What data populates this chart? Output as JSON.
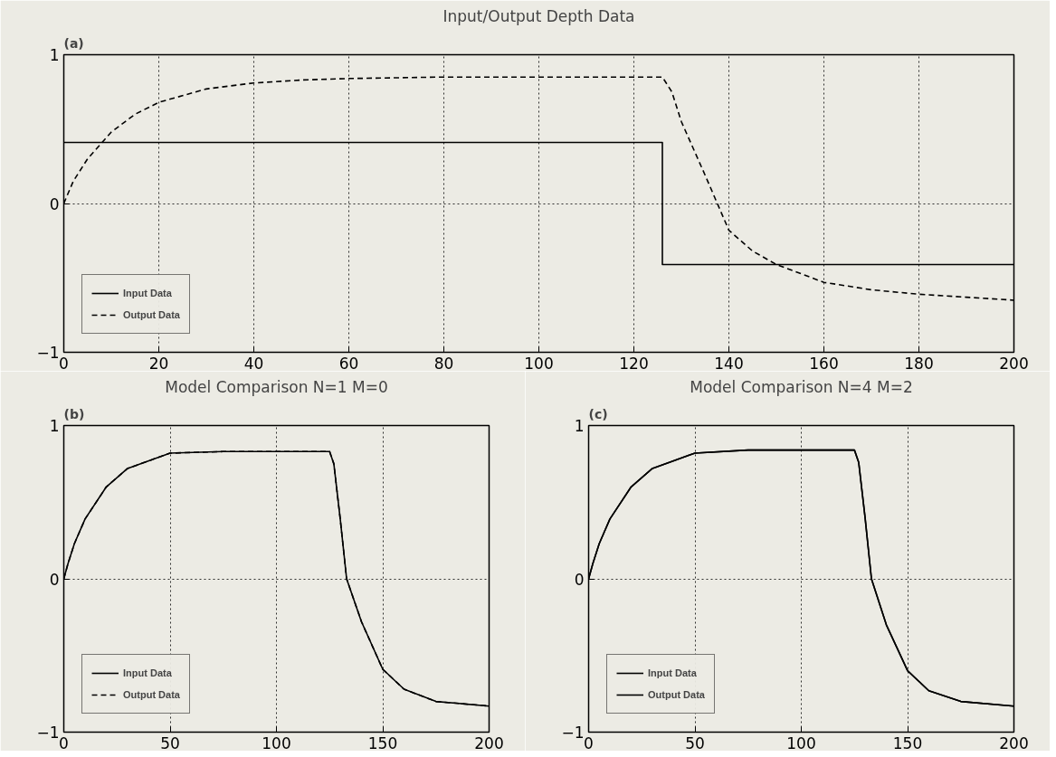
{
  "chart_data": [
    {
      "type": "line",
      "title": "Input/Output Depth Data",
      "annotations": [
        "(a)"
      ],
      "xlim": [
        0,
        200
      ],
      "ylim": [
        -1,
        1
      ],
      "xticks": [
        0,
        20,
        40,
        60,
        80,
        100,
        120,
        140,
        160,
        180,
        200
      ],
      "yticks": [
        -1,
        0,
        1
      ],
      "grid": true,
      "legend": "bottom left",
      "series": [
        {
          "name": "Input Data",
          "color": "#000000",
          "line_style": "solid",
          "x": [
            0,
            126,
            126,
            200
          ],
          "values": [
            0.41,
            0.41,
            -0.41,
            -0.41
          ]
        },
        {
          "name": "Output Data",
          "color": "#000000",
          "line_style": "dashed",
          "x": [
            0,
            2,
            5,
            10,
            15,
            20,
            30,
            40,
            50,
            60,
            80,
            100,
            126,
            128,
            130,
            135,
            140,
            145,
            150,
            160,
            170,
            180,
            190,
            200
          ],
          "values": [
            0,
            0.15,
            0.3,
            0.48,
            0.6,
            0.68,
            0.77,
            0.81,
            0.83,
            0.84,
            0.85,
            0.85,
            0.85,
            0.75,
            0.55,
            0.19,
            -0.18,
            -0.32,
            -0.41,
            -0.53,
            -0.58,
            -0.61,
            -0.63,
            -0.65
          ]
        }
      ]
    },
    {
      "type": "line",
      "title": "Model Comparison N=1 M=0",
      "annotations": [
        "(b)"
      ],
      "xlim": [
        0,
        200
      ],
      "ylim": [
        -1,
        1
      ],
      "xticks": [
        0,
        50,
        100,
        150,
        200
      ],
      "yticks": [
        -1,
        0,
        1
      ],
      "grid": true,
      "legend": "bottom left",
      "series": [
        {
          "name": "Input Data",
          "color": "#000000",
          "line_style": "solid",
          "x": [
            0,
            2,
            5,
            10,
            20,
            30,
            50,
            75,
            100,
            125,
            127,
            130,
            133,
            140,
            150,
            160,
            175,
            200
          ],
          "values": [
            0,
            0.1,
            0.23,
            0.39,
            0.6,
            0.72,
            0.82,
            0.83,
            0.83,
            0.83,
            0.75,
            0.39,
            0,
            -0.28,
            -0.59,
            -0.72,
            -0.8,
            -0.83
          ]
        },
        {
          "name": "Output Data",
          "color": "#000000",
          "line_style": "dashed",
          "x": [
            0,
            2,
            5,
            10,
            20,
            30,
            50,
            75,
            100,
            125,
            127,
            130,
            133,
            140,
            150,
            160,
            175,
            200
          ],
          "values": [
            0,
            0.1,
            0.23,
            0.39,
            0.6,
            0.72,
            0.82,
            0.83,
            0.83,
            0.83,
            0.75,
            0.39,
            0,
            -0.28,
            -0.59,
            -0.72,
            -0.8,
            -0.83
          ]
        }
      ]
    },
    {
      "type": "line",
      "title": "Model Comparison N=4 M=2",
      "annotations": [
        "(c)"
      ],
      "xlim": [
        0,
        200
      ],
      "ylim": [
        -1,
        1
      ],
      "xticks": [
        0,
        50,
        100,
        150,
        200
      ],
      "yticks": [
        -1,
        0,
        1
      ],
      "grid": true,
      "legend": "bottom left",
      "series": [
        {
          "name": "Input Data",
          "color": "#000000",
          "line_style": "solid",
          "x": [
            0,
            2,
            5,
            10,
            20,
            30,
            50,
            75,
            100,
            125,
            127,
            130,
            133,
            140,
            150,
            160,
            175,
            200
          ],
          "values": [
            0,
            0.1,
            0.23,
            0.39,
            0.6,
            0.72,
            0.82,
            0.84,
            0.84,
            0.84,
            0.76,
            0.4,
            0,
            -0.3,
            -0.6,
            -0.73,
            -0.8,
            -0.83
          ]
        },
        {
          "name": "Output Data",
          "color": "#000000",
          "line_style": "solid",
          "x": [
            0,
            2,
            5,
            10,
            20,
            30,
            50,
            75,
            100,
            125,
            127,
            130,
            133,
            140,
            150,
            160,
            175,
            200
          ],
          "values": [
            0,
            0.1,
            0.23,
            0.39,
            0.6,
            0.72,
            0.82,
            0.84,
            0.84,
            0.84,
            0.76,
            0.4,
            0,
            -0.3,
            -0.6,
            -0.73,
            -0.8,
            -0.83
          ]
        }
      ]
    }
  ]
}
